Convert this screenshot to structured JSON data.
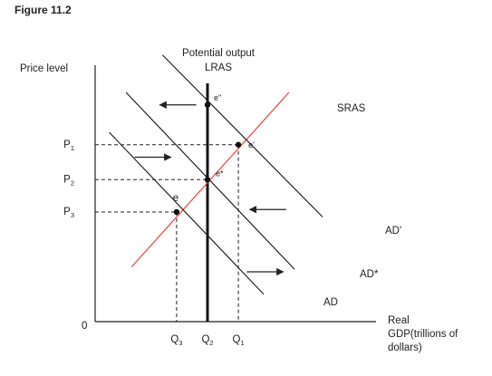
{
  "chart_data": {
    "type": "line",
    "title": "Figure 11.2",
    "ylabel": "Price level",
    "xlabel_lines": [
      "Real",
      "GDP(trillions of",
      "dollars)"
    ],
    "xlim": [
      0,
      100
    ],
    "ylim": [
      0,
      100
    ],
    "origin_label": "0",
    "lras_label_lines": [
      "Potential output",
      "LRAS"
    ],
    "lras_x": 40,
    "price_ticks": [
      {
        "name": "P",
        "sub": "1",
        "y": 71
      },
      {
        "name": "P",
        "sub": "2",
        "y": 57
      },
      {
        "name": "P",
        "sub": "3",
        "y": 44
      }
    ],
    "quantity_ticks": [
      {
        "name": "Q",
        "sub": "3",
        "x": 29
      },
      {
        "name": "Q",
        "sub": "2",
        "x": 40
      },
      {
        "name": "Q",
        "sub": "1",
        "x": 51
      }
    ],
    "series": [
      {
        "name": "SRAS",
        "color": "#e8413a",
        "points": [
          [
            13,
            22
          ],
          [
            69,
            92
          ]
        ]
      },
      {
        "name": "AD",
        "color": "#222222",
        "points": [
          [
            5,
            76
          ],
          [
            60,
            11
          ]
        ]
      },
      {
        "name": "AD*",
        "color": "#222222",
        "points": [
          [
            11,
            92
          ],
          [
            71,
            21
          ]
        ]
      },
      {
        "name": "AD'",
        "color": "#222222",
        "points": [
          [
            24,
            107
          ],
          [
            81,
            42
          ]
        ]
      }
    ],
    "points": [
      {
        "label": "e",
        "x": 29,
        "y": 44,
        "marker": true
      },
      {
        "label": "e*",
        "x": 40,
        "y": 57,
        "marker": true
      },
      {
        "label": "e'",
        "x": 51,
        "y": 71,
        "marker": true
      },
      {
        "label": "e\"",
        "x": 40,
        "y": 87,
        "marker": true
      }
    ],
    "arrows": [
      {
        "direction": "left",
        "x_from": 36,
        "x_to": 23,
        "y": 87
      },
      {
        "direction": "right",
        "x_from": 14,
        "x_to": 27,
        "y": 66
      },
      {
        "direction": "left",
        "x_from": 68,
        "x_to": 55,
        "y": 45
      },
      {
        "direction": "right",
        "x_from": 54,
        "x_to": 67,
        "y": 20
      }
    ],
    "grid": false,
    "guides": "dashed"
  }
}
